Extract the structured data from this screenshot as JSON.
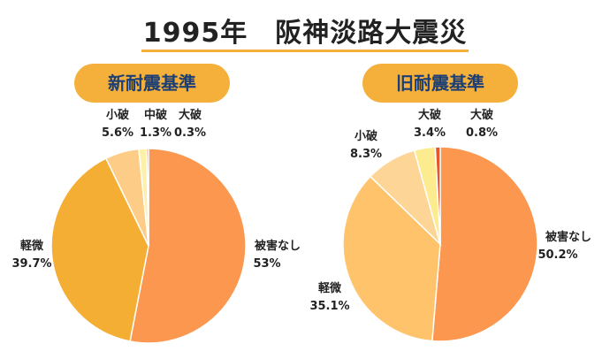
{
  "header": {
    "title": "1995年　阪神淡路大震災"
  },
  "chart_data": [
    {
      "type": "pie",
      "title": "新耐震基準",
      "slices": [
        {
          "label": "被害なし",
          "value": 53,
          "value_text": "53%",
          "color": "#fb974e"
        },
        {
          "label": "軽微",
          "value": 39.7,
          "value_text": "39.7%",
          "color": "#f4ae33"
        },
        {
          "label": "小破",
          "value": 5.6,
          "value_text": "5.6%",
          "color": "#fdcc86"
        },
        {
          "label": "中破",
          "value": 1.3,
          "value_text": "1.3%",
          "color": "#fdf0a9"
        },
        {
          "label": "大破",
          "value": 0.3,
          "value_text": "0.3%",
          "color": "#e4582a"
        }
      ]
    },
    {
      "type": "pie",
      "title": "旧耐震基準",
      "slices": [
        {
          "label": "被害なし",
          "value": 50.2,
          "value_text": "50.2%",
          "color": "#fb974e"
        },
        {
          "label": "軽微",
          "value": 35.1,
          "value_text": "35.1%",
          "color": "#fec36b"
        },
        {
          "label": "小破",
          "value": 8.3,
          "value_text": "8.3%",
          "color": "#fdd596"
        },
        {
          "label": "大破",
          "value": 3.4,
          "value_text": "3.4%",
          "color": "#fdeb8f"
        },
        {
          "label": "大破",
          "value": 0.8,
          "value_text": "0.8%",
          "color": "#e4582a"
        }
      ]
    }
  ]
}
